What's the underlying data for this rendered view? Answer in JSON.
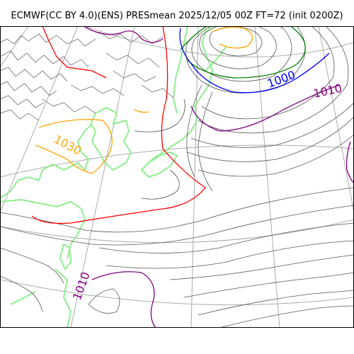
{
  "title": "ECMWF(CC BY 4.0)(ENS) PRESmean 2025/12/05 00Z FT=72 (init 0200Z)",
  "contour_labels": [
    "1000",
    "1010",
    "1030",
    "1010"
  ],
  "colors": {
    "isobar": "#555555",
    "iso_1000": "#0000ff",
    "iso_1010": "#800080",
    "iso_1020": "#ff0000",
    "iso_1030": "#ffa500",
    "iso_980": "#008000",
    "coastline": "#90ee90",
    "graticule": "#aaaaaa"
  }
}
